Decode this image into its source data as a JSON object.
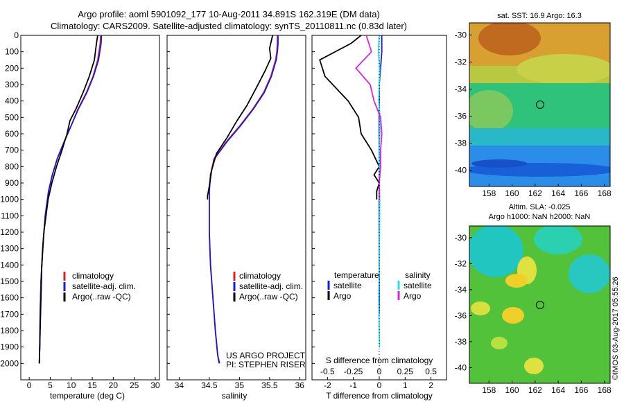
{
  "header": {
    "line1": "Argo profile: aoml 5901092_177 10-Aug-2011 34.891S 162.319E (DM data)",
    "line2": "Climatology: CARS2009. Satellite-adjusted climatology: synTS_20110811.nc (0.83d later)"
  },
  "colors": {
    "climatology": "#e02020",
    "satellite": "#1a1adc",
    "argo": "#000000",
    "sal_satellite": "#22e0e8",
    "sal_argo": "#e020e0"
  },
  "depth_axis": {
    "ylim": [
      0,
      2100
    ],
    "ticks": [
      0,
      100,
      200,
      300,
      400,
      500,
      600,
      700,
      800,
      900,
      1000,
      1100,
      1200,
      1300,
      1400,
      1500,
      1600,
      1700,
      1800,
      1900,
      2000
    ]
  },
  "legend_labels": {
    "climatology": "climatology",
    "satellite_adj": "satellite-adj. clim.",
    "argo": "Argo(..raw -QC)",
    "diff_temperature": "temperature",
    "diff_salinity": "salinity",
    "diff_satellite": "satellite",
    "diff_argo": "Argo"
  },
  "credits": {
    "project": "US ARGO PROJECT",
    "pi": "PI: STEPHEN RISER",
    "imos": "©IMOS 03-Aug-2017 05:55:26"
  },
  "chart_data": [
    {
      "type": "line",
      "name": "temperature",
      "xlabel": "temperature (deg C)",
      "ylabel": "",
      "xlim": [
        -2,
        31
      ],
      "xticks": [
        0,
        5,
        10,
        15,
        20,
        25,
        30
      ],
      "series": [
        {
          "name": "climatology",
          "color": "#e02020",
          "x": [
            17.0,
            16.9,
            16.3,
            15.2,
            13.6,
            11.6,
            10.0,
            8.3,
            6.7,
            5.5,
            4.6,
            3.8,
            3.2,
            2.8,
            2.6,
            2.5,
            2.4
          ],
          "y": [
            0,
            50,
            150,
            250,
            350,
            450,
            550,
            650,
            750,
            850,
            950,
            1100,
            1300,
            1500,
            1700,
            1900,
            2000
          ]
        },
        {
          "name": "satellite-adj. clim.",
          "color": "#1a1adc",
          "x": [
            17.2,
            17.1,
            16.5,
            15.3,
            13.7,
            11.7,
            10.0,
            8.3,
            6.7,
            5.5,
            4.6,
            3.8,
            3.2,
            2.8,
            2.6,
            2.5,
            2.4
          ],
          "y": [
            0,
            50,
            150,
            250,
            350,
            450,
            550,
            650,
            750,
            850,
            950,
            1100,
            1300,
            1500,
            1700,
            1900,
            2000
          ]
        },
        {
          "name": "Argo(..raw -QC)",
          "color": "#000000",
          "x": [
            16.3,
            16.0,
            15.5,
            14.3,
            12.8,
            11.1,
            9.7,
            9.0,
            7.8,
            6.5,
            5.4,
            4.5,
            3.5,
            3.0,
            2.8,
            2.6,
            2.4
          ],
          "y": [
            0,
            50,
            150,
            250,
            350,
            450,
            520,
            600,
            700,
            800,
            900,
            1000,
            1200,
            1400,
            1600,
            1800,
            2000
          ]
        }
      ]
    },
    {
      "type": "line",
      "name": "salinity",
      "xlabel": "salinity",
      "ylabel": "",
      "xlim": [
        33.8,
        36.1
      ],
      "xticks": [
        34,
        34.5,
        35,
        35.5,
        36
      ],
      "series": [
        {
          "name": "climatology",
          "color": "#e02020",
          "x": [
            35.63,
            35.63,
            35.62,
            35.6,
            35.52,
            35.4,
            35.22,
            35.01,
            34.78,
            34.58,
            34.52,
            34.5,
            34.5,
            34.5,
            34.52,
            34.56,
            34.6,
            34.64,
            34.66
          ],
          "y": [
            0,
            50,
            100,
            150,
            250,
            350,
            450,
            550,
            650,
            750,
            850,
            950,
            1050,
            1200,
            1400,
            1600,
            1800,
            1950,
            2000
          ]
        },
        {
          "name": "satellite-adj. clim.",
          "color": "#1a1adc",
          "x": [
            35.64,
            35.64,
            35.63,
            35.61,
            35.53,
            35.41,
            35.23,
            35.02,
            34.79,
            34.59,
            34.52,
            34.5,
            34.5,
            34.5,
            34.52,
            34.56,
            34.6,
            34.64,
            34.67
          ],
          "y": [
            0,
            50,
            100,
            150,
            250,
            350,
            450,
            550,
            650,
            750,
            850,
            950,
            1050,
            1200,
            1400,
            1600,
            1800,
            1950,
            2000
          ]
        },
        {
          "name": "Argo(..raw -QC)",
          "color": "#000000",
          "x": [
            35.55,
            35.5,
            35.52,
            35.42,
            35.28,
            35.12,
            34.96,
            34.8,
            34.62,
            34.54,
            34.5,
            34.47,
            34.47
          ],
          "y": [
            0,
            80,
            140,
            220,
            320,
            430,
            520,
            620,
            720,
            820,
            920,
            980,
            1000
          ]
        }
      ]
    },
    {
      "type": "line",
      "name": "difference",
      "xlabel": "T difference from climatology",
      "xlabel_top": "S difference from climatology",
      "xlim": [
        -2.6,
        2.6
      ],
      "xticks": [
        -2,
        -1,
        0,
        1,
        2
      ],
      "xticks_top": [
        {
          "v": -0.5,
          "label": "-0.5"
        },
        {
          "v": -0.25,
          "label": "-0.25"
        },
        {
          "v": 0,
          "label": "0"
        },
        {
          "v": 0.25,
          "label": "0.25"
        },
        {
          "v": 0.5,
          "label": "0.5"
        }
      ],
      "series": [
        {
          "name": "temperature satellite",
          "color": "#1a1adc",
          "x": [
            0.1,
            0.1,
            0.05,
            0,
            0,
            0,
            0,
            0,
            0,
            0,
            0,
            0,
            0
          ],
          "y": [
            0,
            100,
            200,
            300,
            400,
            500,
            600,
            800,
            1000,
            1200,
            1400,
            1600,
            1700
          ]
        },
        {
          "name": "temperature Argo",
          "color": "#000000",
          "x": [
            -0.7,
            -1.1,
            -2.3,
            -2.1,
            -1.2,
            -0.8,
            -0.7,
            -0.3,
            0,
            -0.2,
            0,
            -0.1,
            -0.1
          ],
          "y": [
            0,
            50,
            150,
            250,
            400,
            500,
            600,
            700,
            800,
            850,
            900,
            950,
            1000
          ]
        },
        {
          "name": "salinity satellite",
          "color": "#22e0e8",
          "x": [
            0,
            -0.03,
            0.02,
            0,
            -0.02,
            0.03,
            0.02,
            0,
            0,
            0.02,
            0.01,
            0,
            -0.02,
            0,
            0.01
          ],
          "y": [
            0,
            100,
            200,
            300,
            400,
            500,
            600,
            700,
            800,
            1000,
            1200,
            1400,
            1600,
            1800,
            1900
          ]
        },
        {
          "name": "salinity Argo",
          "color": "#e020e0",
          "x": [
            -0.5,
            -0.3,
            -0.9,
            -0.35,
            -0.2,
            0.05,
            0.1,
            0.05,
            0.05,
            0,
            0
          ],
          "y": [
            0,
            100,
            200,
            300,
            400,
            500,
            600,
            700,
            800,
            900,
            1000
          ]
        }
      ]
    },
    {
      "type": "heatmap",
      "name": "sat. SST map",
      "title": "sat. SST: 16.9  Argo: 16.3",
      "xticks": [
        158,
        160,
        162,
        164,
        166,
        168
      ],
      "yticks": [
        -30,
        -32,
        -34,
        -36,
        -38,
        -40
      ],
      "xlim": [
        156.3,
        168.5
      ],
      "ylim": [
        -41.2,
        -29.1
      ],
      "profile_location": {
        "lon": 162.319,
        "lat": -34.891
      }
    },
    {
      "type": "heatmap",
      "name": "Altim. SLA map",
      "title": "Altim. SLA: -0.025",
      "subtitle": "Argo h1000: NaN  h2000: NaN",
      "xticks": [
        158,
        160,
        162,
        164,
        166,
        168
      ],
      "yticks": [
        -30,
        -32,
        -34,
        -36,
        -38,
        -40
      ],
      "xlim": [
        156.3,
        168.5
      ],
      "ylim": [
        -41.2,
        -29.1
      ],
      "profile_location": {
        "lon": 162.319,
        "lat": -34.891
      }
    }
  ]
}
